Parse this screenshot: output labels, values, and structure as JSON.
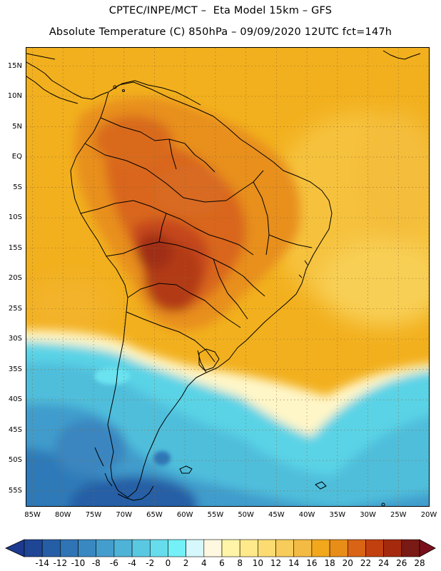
{
  "header": {
    "title_line1": "CPTEC/INPE/MCT –  Eta Model 15km – GFS",
    "title_line2": "Absolute Temperature (C) 850hPa – 09/09/2020 12UTC fct=147h"
  },
  "map": {
    "lat_labels": [
      "15N",
      "10N",
      "5N",
      "EQ",
      "5S",
      "10S",
      "15S",
      "20S",
      "25S",
      "30S",
      "35S",
      "40S",
      "45S",
      "50S",
      "55S"
    ],
    "lon_labels": [
      "85W",
      "80W",
      "75W",
      "70W",
      "65W",
      "60W",
      "55W",
      "50W",
      "45W",
      "40W",
      "35W",
      "30W",
      "25W",
      "20W"
    ],
    "lat_range": [
      18,
      -57.5
    ],
    "lon_range": [
      -86,
      -20
    ]
  },
  "colorbar": {
    "labels": [
      "-14",
      "-12",
      "-10",
      "-8",
      "-6",
      "-4",
      "-2",
      "0",
      "2",
      "4",
      "6",
      "8",
      "10",
      "12",
      "14",
      "16",
      "18",
      "20",
      "22",
      "24",
      "26",
      "28"
    ],
    "low_color": "#1d3a8f",
    "high_color": "#7a0f1c",
    "colors": [
      "#1f4595",
      "#265ea6",
      "#2f74b5",
      "#3a88c2",
      "#449ecd",
      "#4fb3d8",
      "#5bc8e2",
      "#66dcec",
      "#73f1f6",
      "#d6f7fb",
      "#fff8e0",
      "#fff4a8",
      "#ffe98a",
      "#fcdc72",
      "#f8cc5a",
      "#f4bb44",
      "#f1a81c",
      "#e88d18",
      "#d96415",
      "#c2400f",
      "#a52a0d",
      "#7a1a15"
    ]
  }
}
